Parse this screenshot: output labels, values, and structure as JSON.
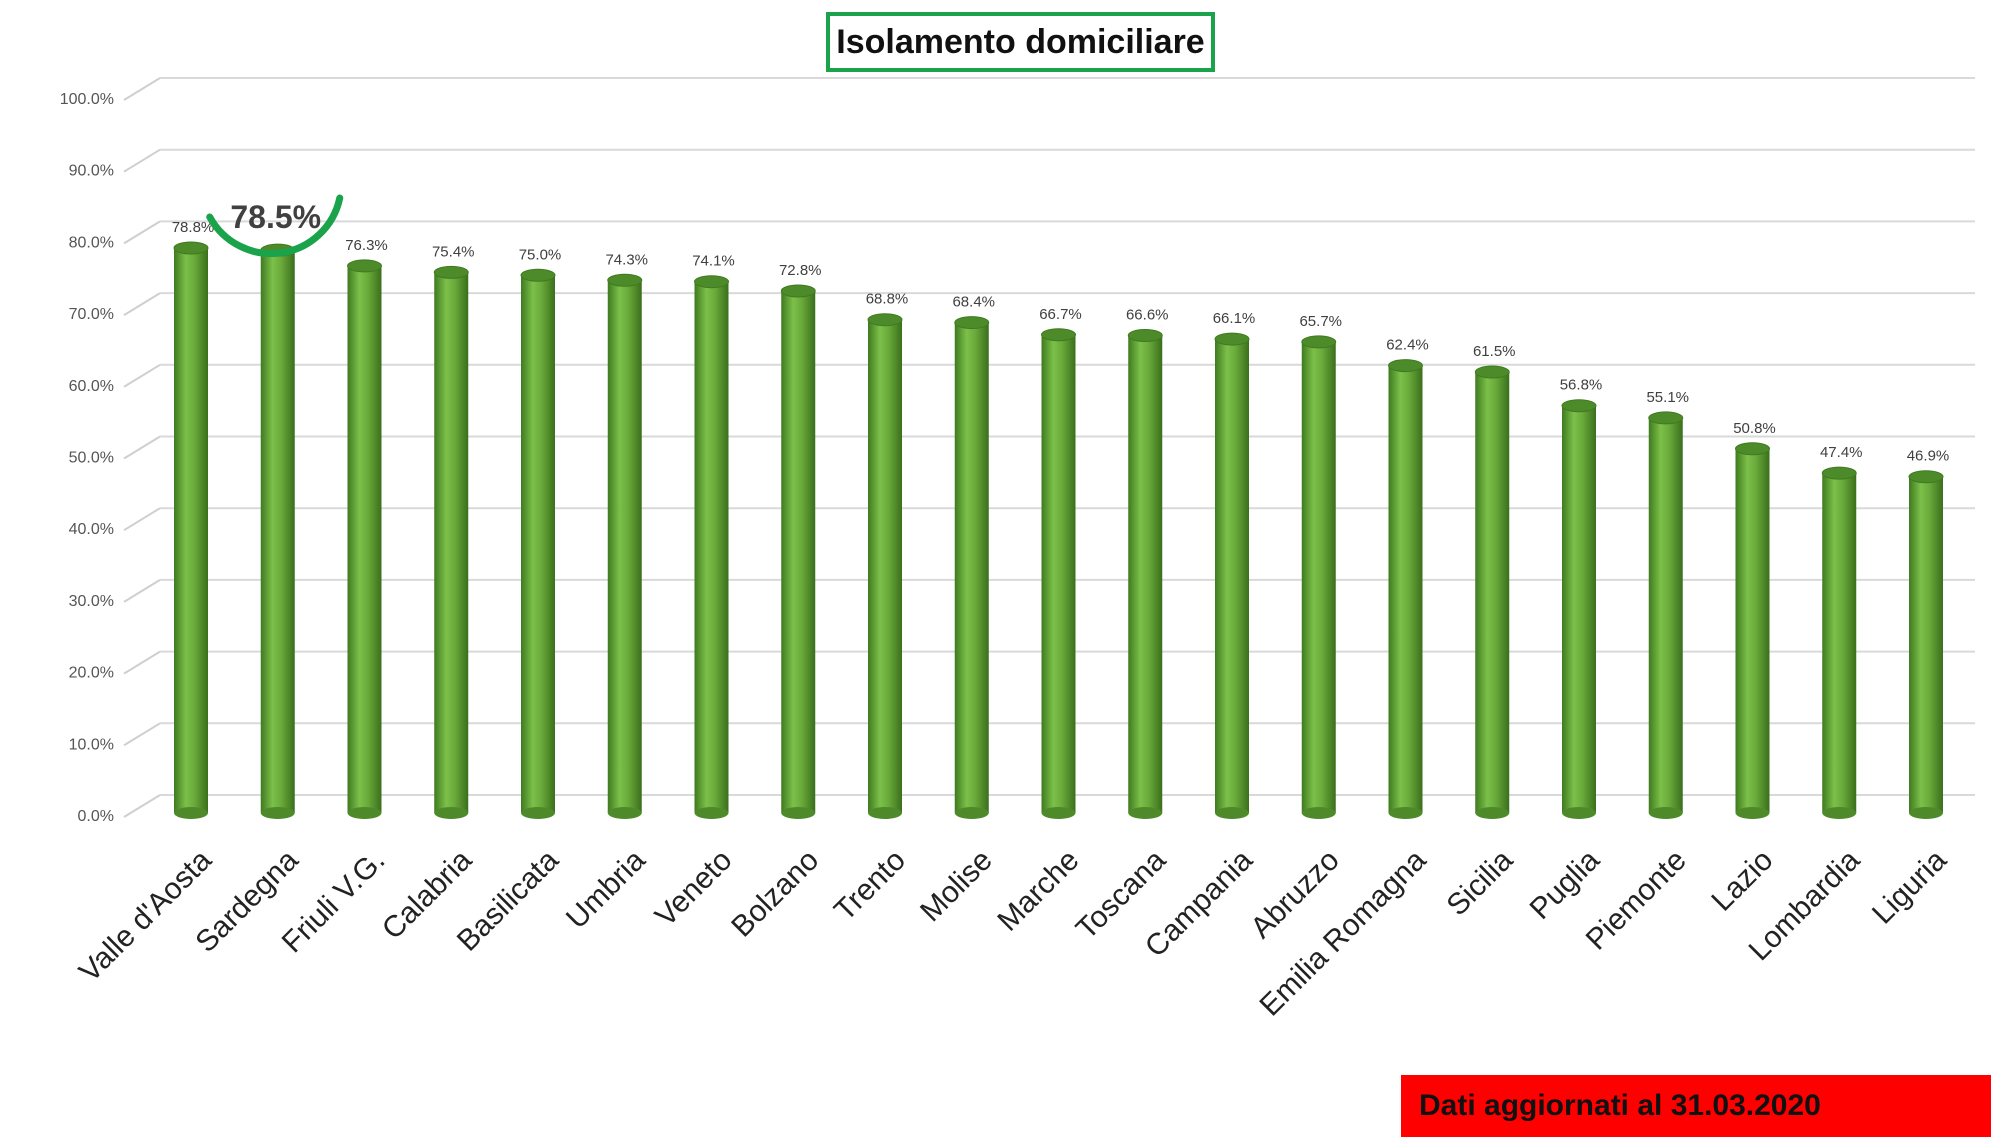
{
  "chart_data": {
    "type": "bar",
    "title": "Isolamento domiciliare",
    "xlabel": "",
    "ylabel": "",
    "ylim": [
      0,
      100
    ],
    "y_ticks": [
      "0.0%",
      "10.0%",
      "20.0%",
      "30.0%",
      "40.0%",
      "50.0%",
      "60.0%",
      "70.0%",
      "80.0%",
      "90.0%",
      "100.0%"
    ],
    "grid": true,
    "categories": [
      "Valle d'Aosta",
      "Sardegna",
      "Friuli V.G.",
      "Calabria",
      "Basilicata",
      "Umbria",
      "Veneto",
      "Bolzano",
      "Trento",
      "Molise",
      "Marche",
      "Toscana",
      "Campania",
      "Abruzzo",
      "Emilia Romagna",
      "Sicilia",
      "Puglia",
      "Piemonte",
      "Lazio",
      "Lombardia",
      "Liguria"
    ],
    "values": [
      78.8,
      78.5,
      76.3,
      75.4,
      75.0,
      74.3,
      74.1,
      72.8,
      68.8,
      68.4,
      66.7,
      66.6,
      66.1,
      65.7,
      62.4,
      61.5,
      56.8,
      55.1,
      50.8,
      47.4,
      46.9
    ],
    "labels": [
      "78.8%",
      "78.5%",
      "76.3%",
      "75.4%",
      "75.0%",
      "74.3%",
      "74.1%",
      "72.8%",
      "68.8%",
      "68.4%",
      "66.7%",
      "66.6%",
      "66.1%",
      "65.7%",
      "62.4%",
      "61.5%",
      "56.8%",
      "55.1%",
      "50.8%",
      "47.4%",
      "46.9%"
    ],
    "highlight": {
      "category": "Sardegna",
      "label": "78.5%",
      "color": "#1aa34a"
    },
    "bar_color": "#6aaa3a"
  },
  "footer": {
    "updated_label": "Dati aggiornati al 31.03.2020",
    "banner_color": "#ff0000"
  }
}
